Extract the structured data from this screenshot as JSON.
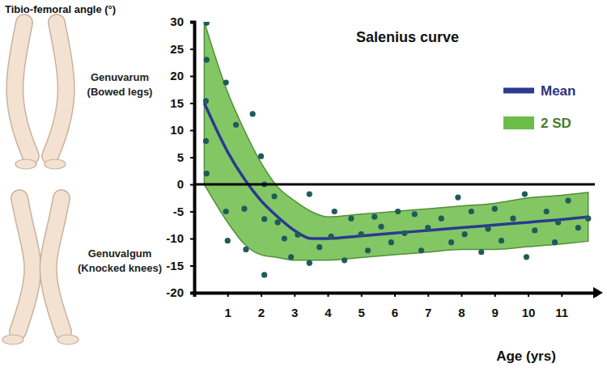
{
  "chart_data": {
    "type": "line",
    "title": "Salenius curve",
    "y_label": "Tibio-femoral angle (°)",
    "x_label": "Age (yrs)",
    "annotations": [
      "Genuvarum (Bowed legs)",
      "Genuvalgum (Knocked knees)"
    ],
    "xlim": [
      0,
      12
    ],
    "xticks": [
      1,
      2,
      3,
      4,
      5,
      6,
      7,
      8,
      9,
      10,
      11
    ],
    "ylim": [
      -20,
      30
    ],
    "yticks": [
      30,
      25,
      20,
      15,
      10,
      5,
      0,
      -5,
      -10,
      -15,
      -20
    ],
    "hlines": [
      0
    ],
    "grid": false,
    "legend": "upper right",
    "series": [
      {
        "name": "Mean",
        "type": "line",
        "color": "#2b3a8f",
        "x": [
          0.3,
          1,
          1.5,
          2,
          2.5,
          3,
          3.5,
          4,
          5,
          6,
          7,
          8,
          9,
          10,
          11,
          11.8
        ],
        "values": [
          15,
          6,
          1,
          -3,
          -6,
          -8.5,
          -10,
          -10,
          -9.5,
          -9,
          -8.5,
          -8,
          -7.5,
          -7,
          -6.5,
          -6
        ]
      },
      {
        "name": "2 SD",
        "type": "area",
        "color": "#6dbd4a",
        "x": [
          0.3,
          1,
          1.5,
          2,
          2.5,
          3,
          3.5,
          4,
          5,
          6,
          7,
          8,
          9,
          10,
          11,
          11.8
        ],
        "upper": [
          30,
          17,
          10,
          4,
          -0.5,
          -3,
          -5,
          -6,
          -5.5,
          -5,
          -4.5,
          -4,
          -3.5,
          -2.5,
          -2,
          -1.5
        ],
        "lower": [
          0,
          -7,
          -11,
          -13,
          -13.5,
          -14,
          -14,
          -14,
          -13.5,
          -13,
          -12.5,
          -12,
          -12,
          -11.5,
          -11,
          -10.5
        ]
      },
      {
        "type": "scatter",
        "marker": "circle",
        "color": "#1d5c5a",
        "x": [
          0.37,
          0.37,
          0.35,
          0.35,
          0.37,
          0.95,
          0.95,
          1.0,
          1.25,
          1.5,
          1.55,
          1.75,
          2.0,
          2.1,
          2.1,
          2.1,
          2.4,
          2.5,
          2.7,
          2.9,
          3.1,
          3.45,
          3.45,
          3.75,
          4.1,
          4.2,
          4.5,
          4.7,
          5.0,
          5.2,
          5.4,
          5.6,
          5.9,
          6.1,
          6.3,
          6.6,
          6.8,
          7.0,
          7.4,
          7.7,
          7.9,
          8.1,
          8.3,
          8.6,
          8.8,
          9.0,
          9.2,
          9.55,
          9.9,
          9.95,
          10.2,
          10.55,
          10.8,
          10.9,
          11.2,
          11.5,
          11.8
        ],
        "values": [
          29.8,
          23,
          15.4,
          8,
          2,
          18.8,
          -5,
          -10.4,
          11,
          -4.5,
          -12,
          13,
          5.2,
          0,
          -6.4,
          -16.7,
          -2.2,
          -7,
          -10,
          -13.4,
          -9.3,
          -1.8,
          -14.5,
          -11.6,
          -9.6,
          -5,
          -14,
          -6.3,
          -9.2,
          -12.2,
          -6,
          -7.8,
          -10.7,
          -5,
          -9,
          -5.5,
          -12.2,
          -8,
          -6.3,
          -10.7,
          -2.4,
          -9.2,
          -5,
          -12.5,
          -8.2,
          -4.5,
          -10.4,
          -6.3,
          -1.8,
          -13.4,
          -8.5,
          -5,
          -10.7,
          -7,
          -3,
          -8,
          -6.3
        ]
      }
    ]
  }
}
